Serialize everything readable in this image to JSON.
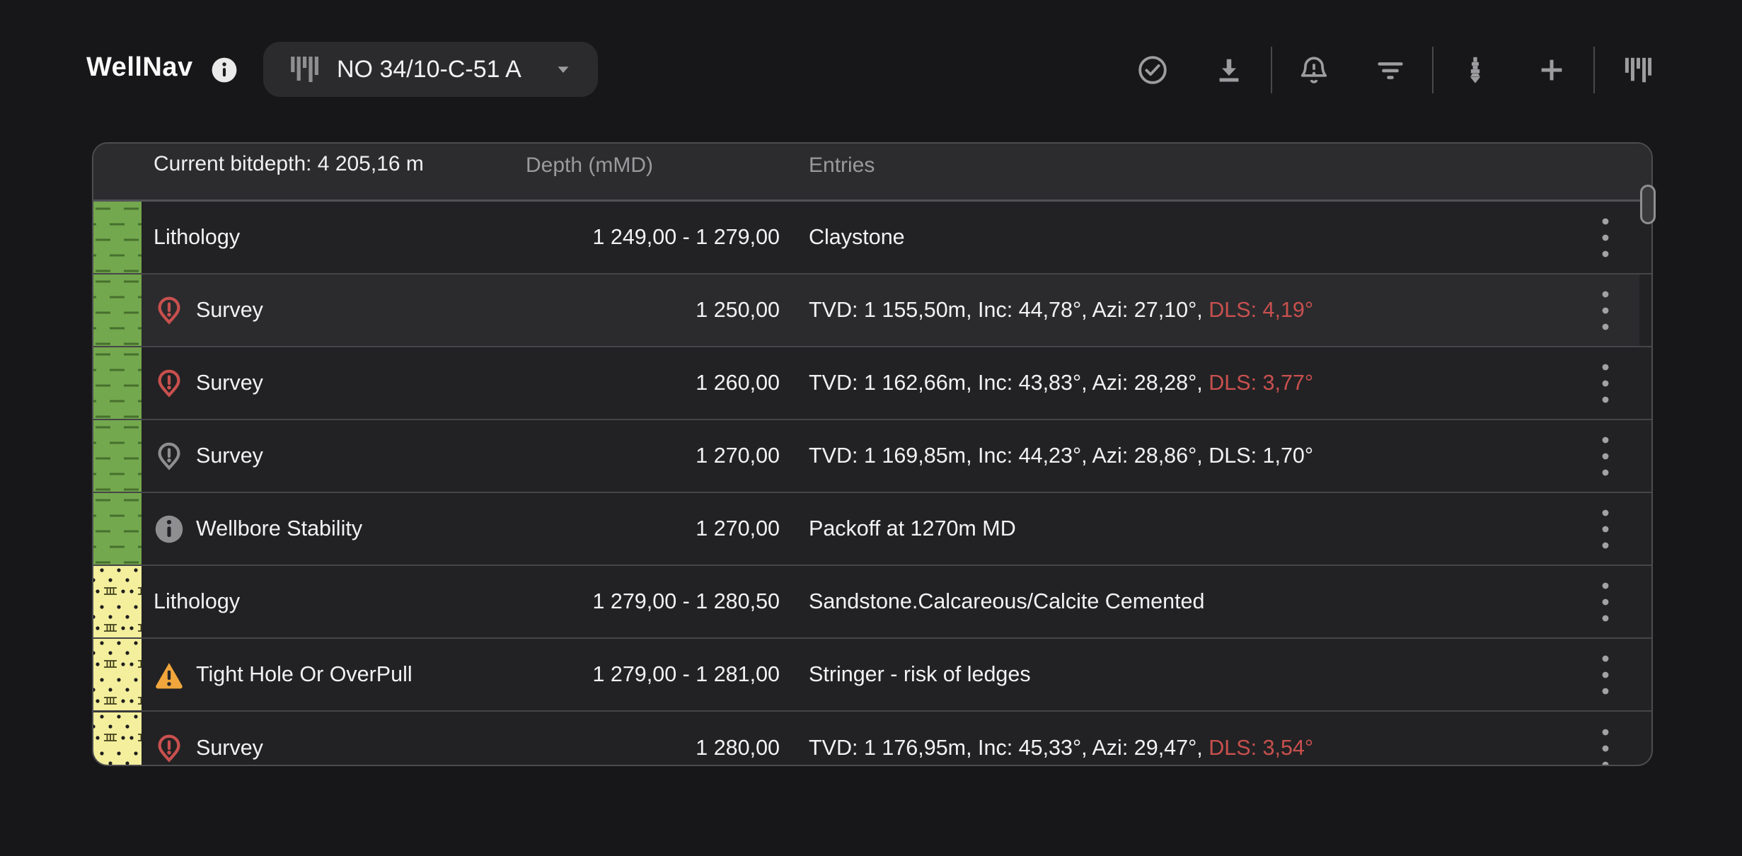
{
  "app": {
    "title": "WellNav",
    "well_selector": {
      "label": "NO 34/10-C-51 A"
    }
  },
  "toolbar": {
    "items": [
      {
        "icon": "check-circle-icon"
      },
      {
        "icon": "download-icon"
      },
      {
        "divider": true
      },
      {
        "icon": "bell-alert-icon"
      },
      {
        "icon": "filter-icon"
      },
      {
        "divider": true
      },
      {
        "icon": "drill-bit-icon"
      },
      {
        "icon": "plus-icon"
      },
      {
        "divider": true
      },
      {
        "icon": "well-log-icon"
      }
    ]
  },
  "table": {
    "header": {
      "bitdepth_label": "Current bitdepth: 4 205,16 m",
      "depth_label": "Depth (mMD)",
      "entries_label": "Entries"
    },
    "rows": [
      {
        "type": "Lithology",
        "icon": null,
        "strip": "claystone",
        "depth": "1 249,00 - 1 279,00",
        "entry": "Claystone",
        "entry_alert": "",
        "highlighted": false
      },
      {
        "type": "Survey",
        "icon": "pin-alert",
        "icon_color": "red",
        "strip": "claystone",
        "depth": "1 250,00",
        "entry": "TVD: 1 155,50m, Inc: 44,78°, Azi: 27,10°, ",
        "entry_alert": "DLS: 4,19°",
        "highlighted": true
      },
      {
        "type": "Survey",
        "icon": "pin-alert",
        "icon_color": "red",
        "strip": "claystone",
        "depth": "1 260,00",
        "entry": "TVD: 1 162,66m, Inc: 43,83°, Azi: 28,28°, ",
        "entry_alert": "DLS: 3,77°",
        "highlighted": false
      },
      {
        "type": "Survey",
        "icon": "pin-alert",
        "icon_color": "gray",
        "strip": "claystone",
        "depth": "1 270,00",
        "entry": "TVD: 1 169,85m, Inc: 44,23°, Azi: 28,86°, DLS: 1,70°",
        "entry_alert": "",
        "highlighted": false
      },
      {
        "type": "Wellbore Stability",
        "icon": "info",
        "icon_color": "gray",
        "strip": "claystone",
        "depth": "1 270,00",
        "entry": "Packoff at 1270m MD",
        "entry_alert": "",
        "highlighted": false
      },
      {
        "type": "Lithology",
        "icon": null,
        "strip": "sandstone",
        "depth": "1 279,00 - 1 280,50",
        "entry": "Sandstone.Calcareous/Calcite Cemented",
        "entry_alert": "",
        "highlighted": false
      },
      {
        "type": "Tight Hole Or OverPull",
        "icon": "warning",
        "icon_color": "orange",
        "strip": "sandstone",
        "depth": "1 279,00 - 1 281,00",
        "entry": "Stringer - risk of ledges",
        "entry_alert": "",
        "highlighted": false
      },
      {
        "type": "Survey",
        "icon": "pin-alert",
        "icon_color": "red",
        "strip": "sandstone",
        "depth": "1 280,00",
        "entry": "TVD: 1 176,95m, Inc: 45,33°, Azi: 29,47°, ",
        "entry_alert": "DLS: 3,54°",
        "highlighted": false
      }
    ]
  },
  "colors": {
    "alert_red": "#c8504e",
    "warning_orange": "#f0a63c",
    "icon_gray": "#8e8e90",
    "claystone_green": "#74a84e",
    "sandstone_yellow": "#f4ef9d",
    "header_bg": "#2c2c2f",
    "row_bg": "#222224",
    "row_highlight_bg": "#2b2b2e"
  }
}
